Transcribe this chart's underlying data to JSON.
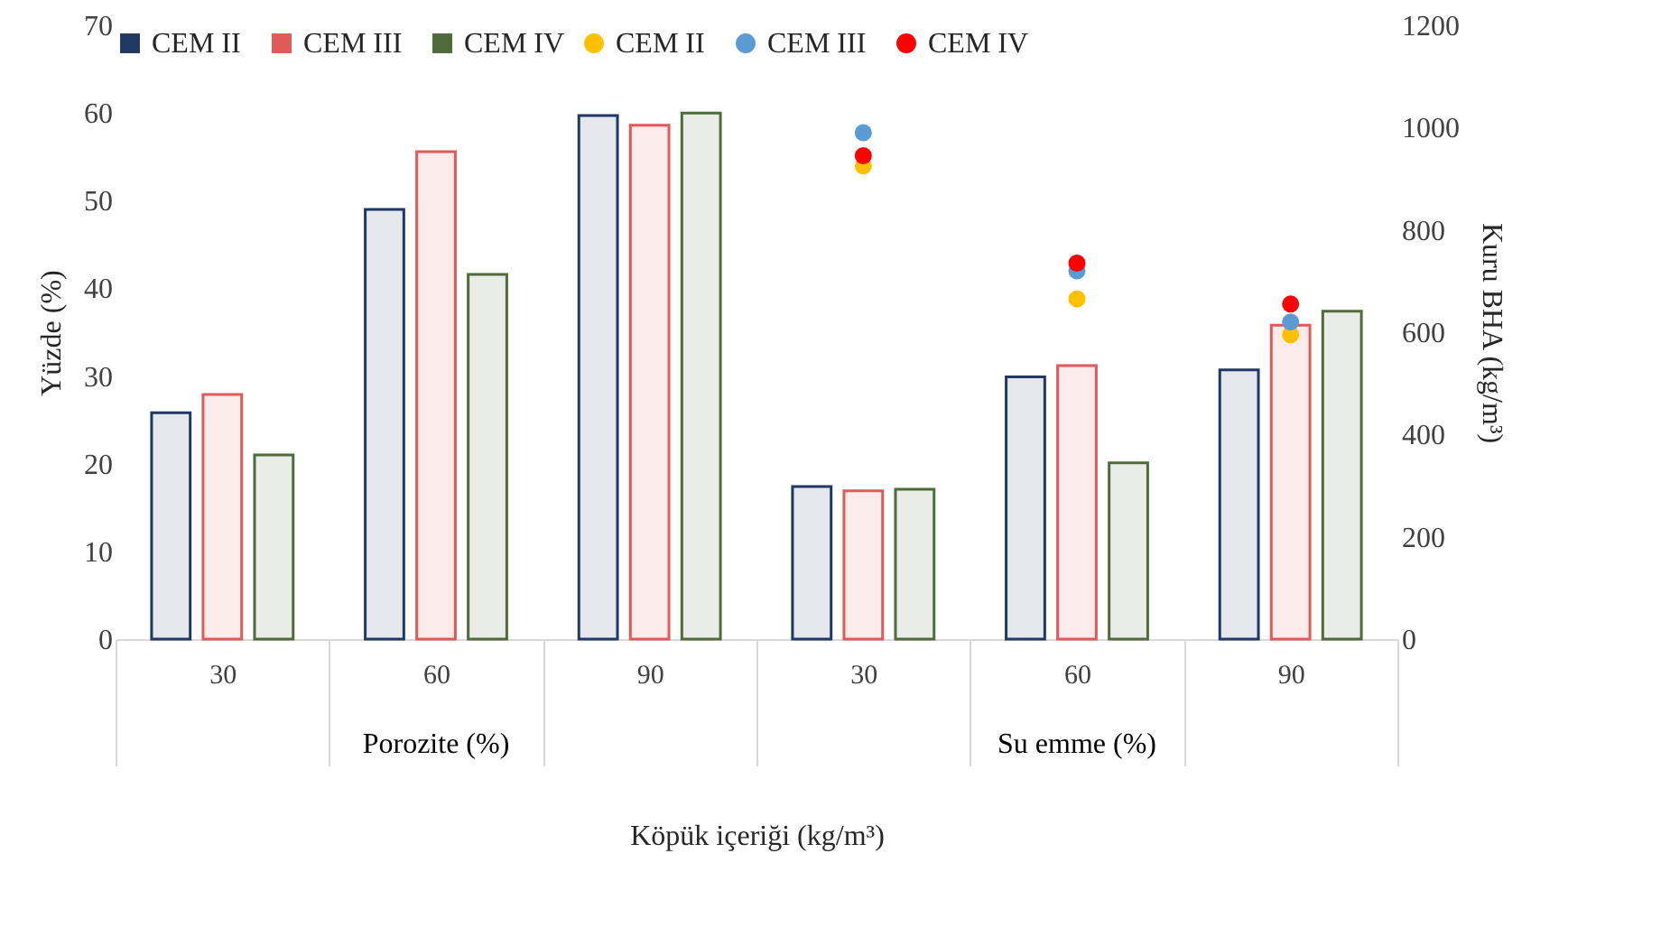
{
  "chart_data": {
    "type": "bar",
    "xlabel": "Köpük içeriği (kg/m³)",
    "ylabel": "Yüzde (%)",
    "y2label": "Kuru BHA (kg/m³)",
    "categories": [
      "30",
      "60",
      "90",
      "30",
      "60",
      "90"
    ],
    "annotations": [
      "Porozite (%)",
      "Su emme (%)"
    ],
    "series": [
      {
        "name": "CEM II",
        "color": "#203864",
        "values": [
          25.8,
          49,
          59.7,
          17.4,
          29.9,
          30.7
        ]
      },
      {
        "name": "CEM III",
        "color": "#e05a5a",
        "values": [
          27.9,
          55.6,
          58.6,
          16.9,
          31.2,
          35.8
        ]
      },
      {
        "name": "CEM IV",
        "color": "#4f6b3a",
        "values": [
          21,
          41.6,
          60,
          17.1,
          20.1,
          37.4
        ]
      },
      {
        "name": "CEM II",
        "type": "scatter",
        "axis": "y2",
        "color": "#ffc000",
        "values": [
          null,
          null,
          null,
          925,
          665,
          595
        ]
      },
      {
        "name": "CEM III",
        "type": "scatter",
        "axis": "y2",
        "color": "#5b9bd5",
        "values": [
          null,
          null,
          null,
          990,
          720,
          620
        ]
      },
      {
        "name": "CEM IV",
        "type": "scatter",
        "axis": "y2",
        "color": "#ff0000",
        "values": [
          null,
          null,
          null,
          945,
          735,
          655
        ]
      }
    ],
    "ylim": [
      0,
      70
    ],
    "yticks": [
      0,
      10,
      20,
      30,
      40,
      50,
      60,
      70
    ],
    "y2lim": [
      0,
      1200
    ],
    "y2ticks": [
      0,
      200,
      400,
      600,
      800,
      1000,
      1200
    ],
    "marker": "circle",
    "legend": "top",
    "grid": false
  }
}
